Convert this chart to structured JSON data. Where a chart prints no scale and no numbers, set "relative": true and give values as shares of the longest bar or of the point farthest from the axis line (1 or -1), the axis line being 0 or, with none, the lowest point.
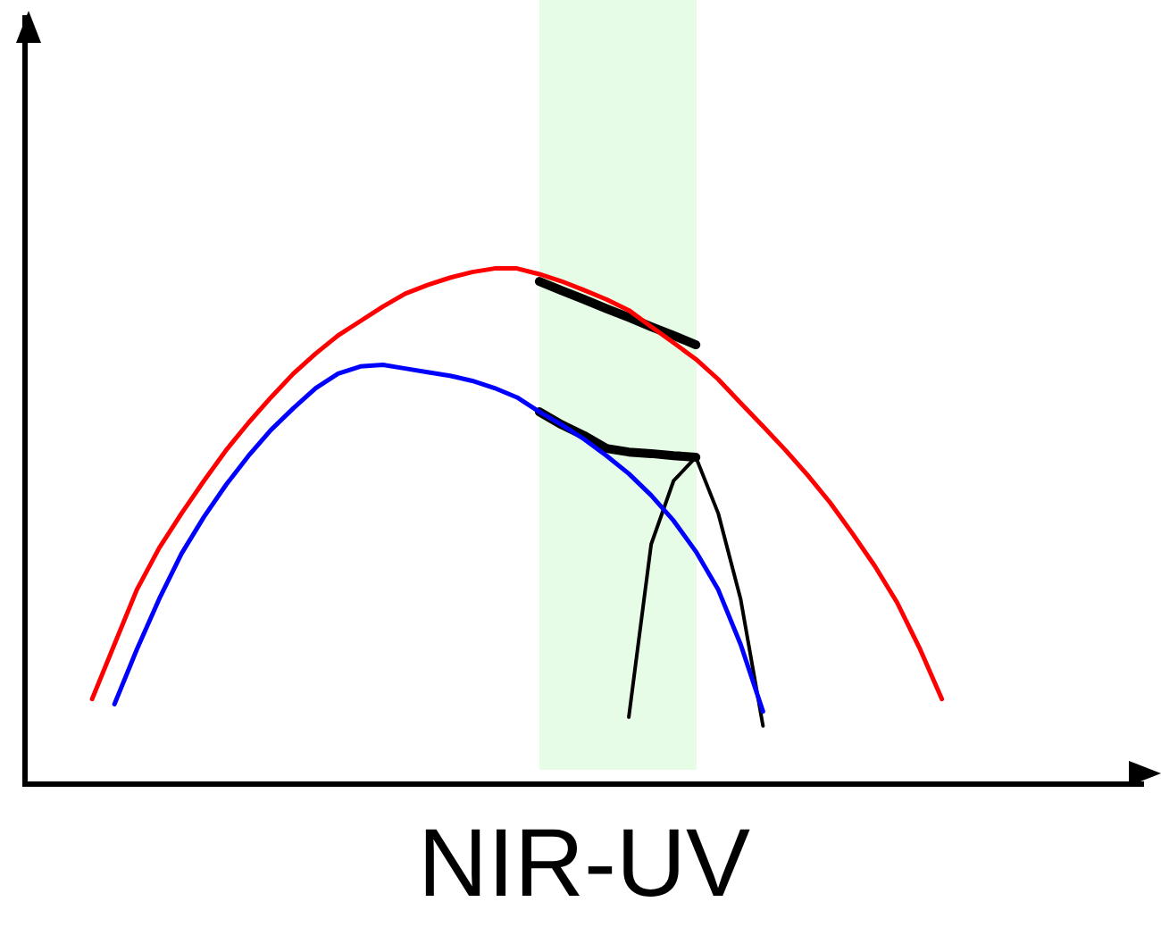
{
  "chart_data": {
    "type": "line",
    "relative": true,
    "xlabel": "NIR-UV",
    "grid": false,
    "legend": false,
    "marker": "none",
    "line_style": "solid",
    "categories": [
      null,
      null,
      null,
      null,
      null,
      null,
      null,
      null,
      null,
      null,
      null,
      null,
      null,
      null,
      null,
      null,
      null,
      null,
      null,
      null,
      null,
      null,
      null,
      null,
      null,
      null,
      null,
      null,
      null,
      null,
      null,
      null,
      null,
      null,
      null,
      null,
      null,
      null,
      null,
      null,
      null,
      null,
      null,
      null,
      null,
      null,
      null,
      null,
      null,
      null,
      null
    ],
    "series": [
      {
        "color": "#ff0000",
        "values": [
          null,
          null,
          null,
          0.165,
          0.271,
          0.377,
          0.458,
          0.525,
          0.588,
          0.648,
          0.701,
          0.75,
          0.796,
          0.835,
          0.87,
          0.898,
          0.926,
          0.951,
          0.968,
          0.982,
          0.993,
          1,
          1,
          0.989,
          0.975,
          0.958,
          0.94,
          0.919,
          0.887,
          0.856,
          0.824,
          0.785,
          0.739,
          0.694,
          0.648,
          0.599,
          0.546,
          0.486,
          0.423,
          0.352,
          0.264,
          0.165,
          null,
          null,
          null,
          null,
          null,
          null,
          null,
          null,
          null
        ]
      },
      {
        "color": "#0000ff",
        "values": [
          null,
          null,
          null,
          null,
          0.155,
          0.261,
          0.359,
          0.447,
          0.518,
          0.581,
          0.637,
          0.687,
          0.729,
          0.768,
          0.796,
          0.81,
          0.813,
          0.806,
          0.799,
          0.792,
          0.782,
          0.768,
          0.75,
          0.722,
          0.697,
          0.669,
          0.637,
          0.602,
          0.56,
          0.511,
          0.451,
          0.377,
          0.271,
          0.141,
          null,
          null,
          null,
          null,
          null,
          null,
          null,
          null,
          null,
          null,
          null,
          null,
          null,
          null,
          null,
          null,
          null
        ]
      },
      {
        "color": "#000000",
        "values": [
          null,
          null,
          null,
          null,
          null,
          null,
          null,
          null,
          null,
          null,
          null,
          null,
          null,
          null,
          null,
          null,
          null,
          null,
          null,
          null,
          null,
          null,
          null,
          0.975,
          0.957,
          0.94,
          0.922,
          0.905,
          0.887,
          0.87,
          0.852,
          null,
          null,
          null,
          null,
          null,
          null,
          null,
          null,
          null,
          null,
          null,
          null,
          null,
          null,
          null,
          null,
          null,
          null,
          null,
          null
        ]
      },
      {
        "color": "#000000",
        "values": [
          null,
          null,
          null,
          null,
          null,
          null,
          null,
          null,
          null,
          null,
          null,
          null,
          null,
          null,
          null,
          null,
          null,
          null,
          null,
          null,
          null,
          null,
          null,
          0.722,
          0.697,
          0.676,
          0.651,
          0.644,
          0.641,
          0.637,
          0.634,
          null,
          null,
          null,
          null,
          null,
          null,
          null,
          null,
          null,
          null,
          null,
          null,
          null,
          null,
          null,
          null,
          null,
          null,
          null,
          null
        ]
      },
      {
        "color": "#000000",
        "values": [
          null,
          null,
          null,
          null,
          null,
          null,
          null,
          null,
          null,
          null,
          null,
          null,
          null,
          null,
          null,
          null,
          null,
          null,
          null,
          null,
          null,
          null,
          null,
          null,
          null,
          null,
          null,
          0.13,
          0.465,
          0.588,
          0.634,
          null,
          null,
          null,
          null,
          null,
          null,
          null,
          null,
          null,
          null,
          null,
          null,
          null,
          null,
          null,
          null,
          null,
          null,
          null,
          null
        ]
      },
      {
        "color": "#000000",
        "values": [
          null,
          null,
          null,
          null,
          null,
          null,
          null,
          null,
          null,
          null,
          null,
          null,
          null,
          null,
          null,
          null,
          null,
          null,
          null,
          null,
          null,
          null,
          null,
          null,
          null,
          null,
          null,
          null,
          null,
          null,
          0.634,
          0.525,
          0.359,
          0.113,
          null,
          null,
          null,
          null,
          null,
          null,
          null,
          null,
          null,
          null,
          null,
          null,
          null,
          null,
          null,
          null,
          null
        ]
      }
    ]
  }
}
